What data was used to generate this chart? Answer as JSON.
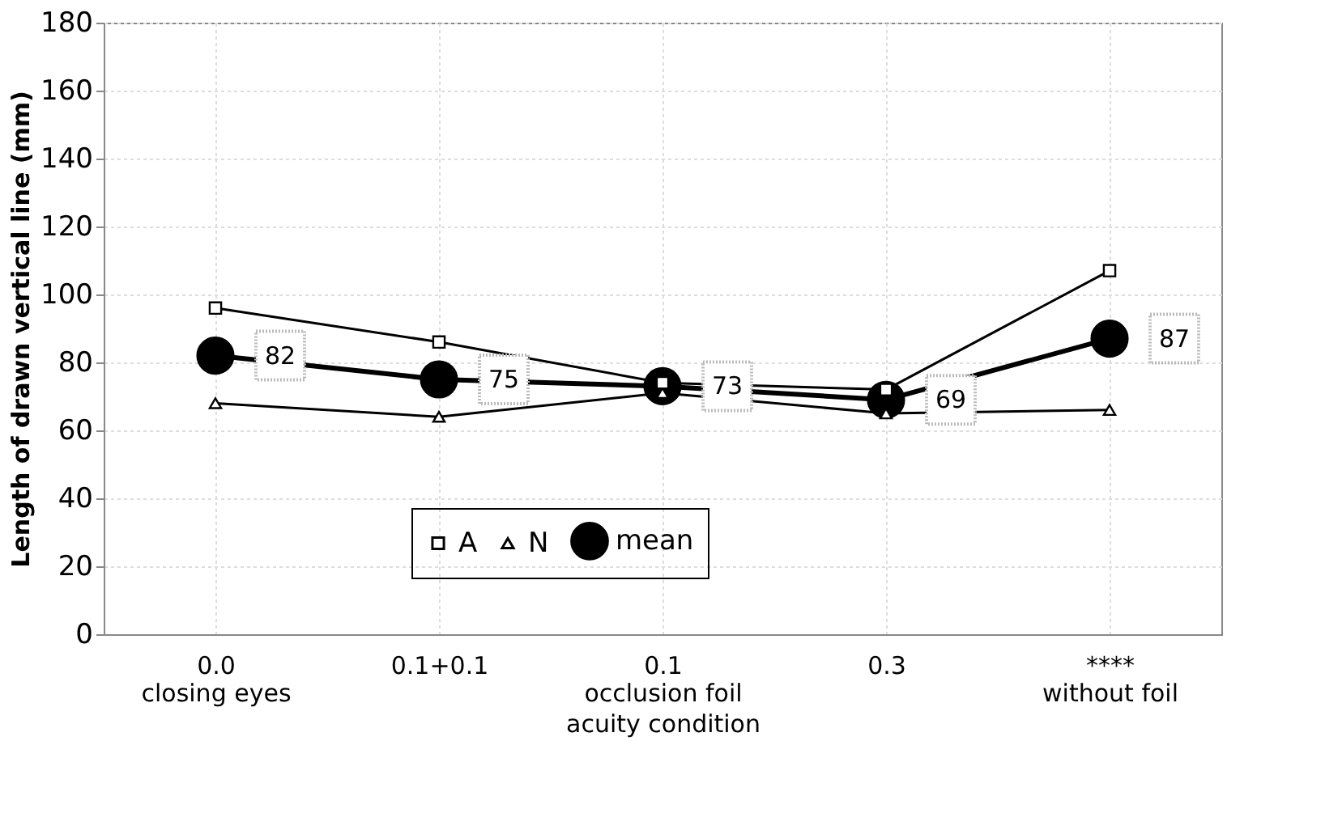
{
  "chart_data": {
    "type": "line",
    "xlabel": "acuity condition",
    "ylabel": "Length of drawn vertical line (mm)",
    "categories": [
      "0.0\nclosing eyes",
      "0.1+0.1",
      "0.1\nocclusion foil",
      "0.3",
      "****\nwithout foil"
    ],
    "ylim": [
      0,
      180
    ],
    "yticks": [
      0,
      20,
      40,
      60,
      80,
      100,
      120,
      140,
      160,
      180
    ],
    "grid": true,
    "legend": "bottom",
    "series": [
      {
        "name": "A",
        "color": "#000000",
        "marker": "square",
        "values": [
          96,
          86,
          74,
          72,
          107
        ]
      },
      {
        "name": "N",
        "color": "#000000",
        "marker": "triangle",
        "values": [
          68,
          64,
          71,
          65,
          66
        ]
      },
      {
        "name": "mean",
        "color": "#000000",
        "marker": "circle",
        "values": [
          82,
          75,
          73,
          69,
          87
        ],
        "value_labels": [
          "82",
          "75",
          "73",
          "69",
          "87"
        ]
      }
    ]
  }
}
